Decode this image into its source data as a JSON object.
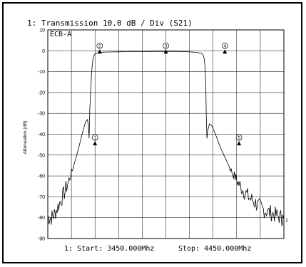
{
  "chart_data": {
    "type": "line",
    "title": "1: Transmission 10.0 dB / Div    (S21)",
    "trace_label": "ECB-A",
    "ylabel": "Attenuation (dB)",
    "xlim": [
      3450,
      4450
    ],
    "ylim": [
      -90,
      10
    ],
    "y_ticks": [
      10,
      0,
      -10,
      -20,
      -30,
      -40,
      -50,
      -60,
      -70,
      -80,
      -90
    ],
    "x_gridlines": 10,
    "grid": true,
    "footer": {
      "start": "1: Start: 3450.000Mhz",
      "stop": "Stop: 4450.000Mhz"
    },
    "end_marker_label": "1",
    "series": [
      {
        "x": [
          3450,
          3465,
          3480,
          3500,
          3520,
          3540,
          3560,
          3580,
          3600,
          3610,
          3618,
          3622,
          3625,
          3628,
          3632,
          3636,
          3640,
          3645,
          3650,
          3660,
          3670,
          3680,
          3700,
          3750,
          3800,
          3850,
          3900,
          3950,
          4000,
          4050,
          4080,
          4100,
          4108,
          4113,
          4116,
          4119,
          4121,
          4124,
          4128,
          4135,
          4145,
          4160,
          4180,
          4200,
          4220,
          4240,
          4260,
          4280,
          4300,
          4320,
          4340,
          4360,
          4380,
          4400,
          4420,
          4440,
          4450
        ],
        "y": [
          -80,
          -80,
          -78,
          -73,
          -68,
          -62,
          -55,
          -47,
          -38,
          -34,
          -33,
          -36,
          -42,
          -28,
          -18,
          -10,
          -5,
          -2.5,
          -1.5,
          -1.0,
          -0.8,
          -0.7,
          -0.6,
          -0.5,
          -0.4,
          -0.4,
          -0.3,
          -0.3,
          -0.3,
          -0.5,
          -0.8,
          -1.2,
          -2.0,
          -4.0,
          -8.0,
          -15.0,
          -30.0,
          -42.0,
          -38.0,
          -35.0,
          -36.0,
          -40.0,
          -46.0,
          -51.0,
          -56.0,
          -60.0,
          -64.0,
          -67.0,
          -70.0,
          -72.0,
          -74.0,
          -76.0,
          -77.0,
          -78.0,
          -79.0,
          -80.0,
          -81.0
        ]
      }
    ],
    "markers": [
      {
        "label": "1",
        "x": 3650,
        "y": -45
      },
      {
        "label": "2",
        "x": 3670,
        "y": -1
      },
      {
        "label": "3",
        "x": 3950,
        "y": -1
      },
      {
        "label": "4",
        "x": 4200,
        "y": -1
      },
      {
        "label": "5",
        "x": 4260,
        "y": -45
      }
    ]
  }
}
